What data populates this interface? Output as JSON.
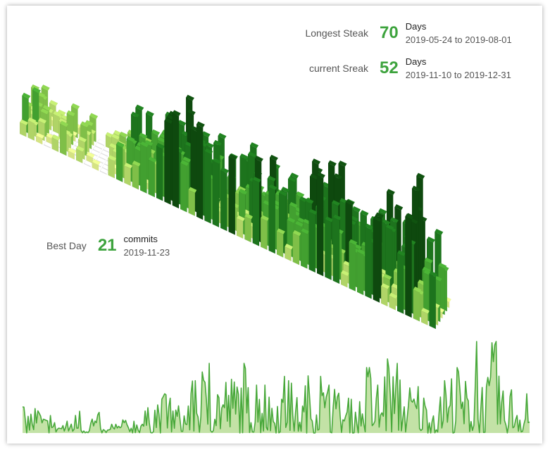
{
  "stats": {
    "longest": {
      "label": "Longest Steak",
      "value": "70",
      "unit": "Days",
      "range": "2019-05-24 to 2019-08-01"
    },
    "current": {
      "label": "current Sreak",
      "value": "52",
      "unit": "Days",
      "range": "2019-11-10 to 2019-12-31"
    },
    "best": {
      "label": "Best Day",
      "value": "21",
      "unit": "commits",
      "date": "2019-11-23"
    }
  },
  "colors": {
    "level1": "#e0ef8a",
    "level2": "#b9df6c",
    "level3": "#86c94c",
    "level4": "#45a832",
    "level5": "#1f7a1f",
    "level6": "#0f4d0f",
    "line": "#48a83a",
    "area": "#b8dd97",
    "empty": "#ececec"
  },
  "chart_data": [
    {
      "type": "bar",
      "subtype": "isometric-3d-calendar",
      "description_axes": "weeks (columns) by weekday (rows), bar height = commits per day",
      "weeks": 52,
      "days_per_week": 7,
      "weekly_max_commits": [
        6,
        7,
        4,
        3,
        3,
        5,
        2,
        5,
        1,
        2,
        3,
        4,
        6,
        10,
        9,
        8,
        7,
        12,
        14,
        16,
        15,
        14,
        16,
        12,
        11,
        10,
        13,
        12,
        9,
        14,
        13,
        11,
        10,
        8,
        9,
        15,
        11,
        17,
        16,
        12,
        13,
        10,
        9,
        12,
        15,
        13,
        11,
        14,
        21,
        10,
        12,
        9
      ]
    },
    {
      "type": "area",
      "description_axes": "daily commits over the year",
      "x": "days 1-365",
      "ymax": 21
    }
  ]
}
